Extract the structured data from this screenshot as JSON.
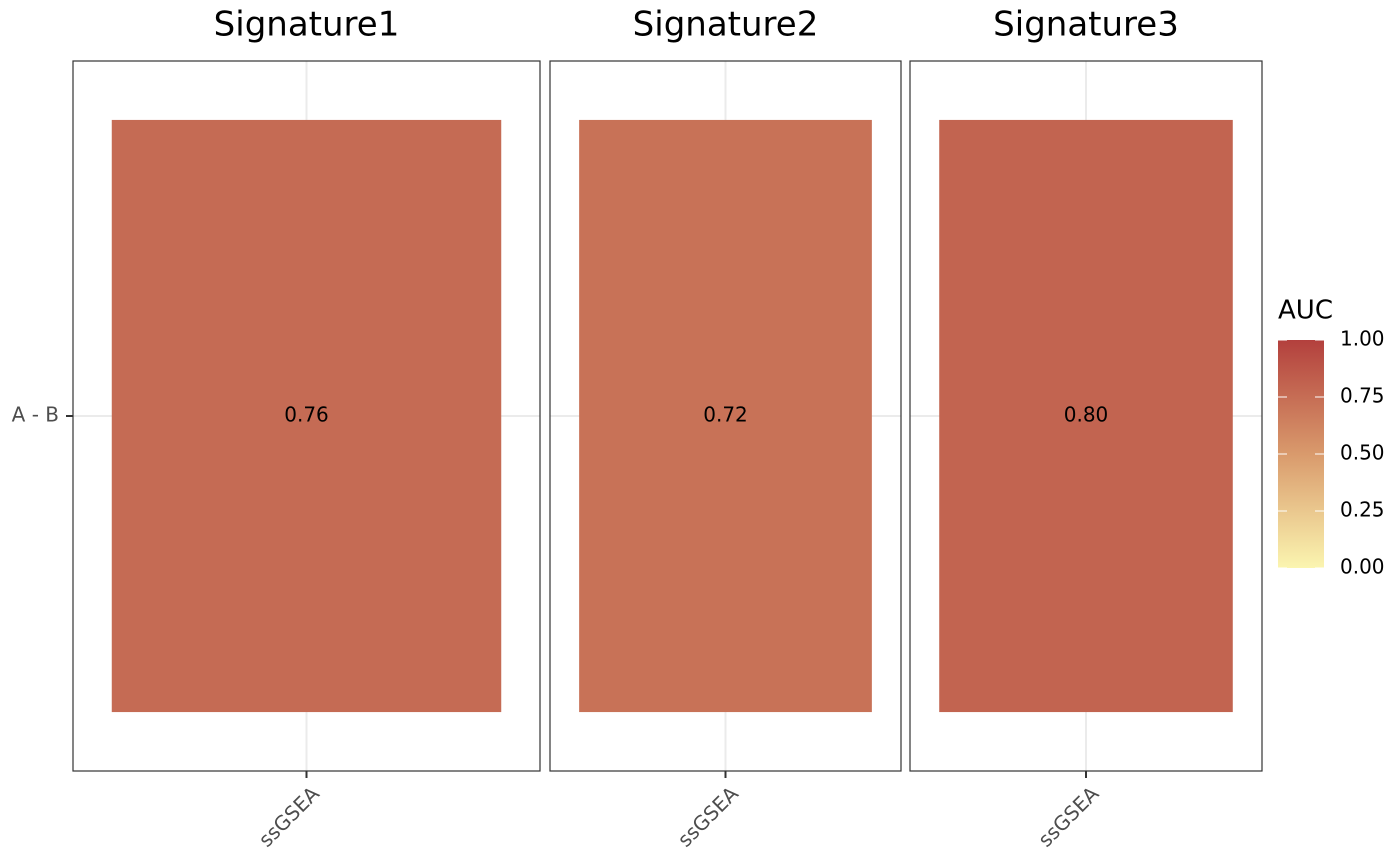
{
  "chart_data": {
    "type": "heatmap",
    "y_categories": [
      "A - B"
    ],
    "facets": [
      {
        "title": "Signature1",
        "x_categories": [
          "ssGSEA"
        ],
        "values": [
          [
            0.76
          ]
        ],
        "value_labels": [
          [
            "0.76"
          ]
        ]
      },
      {
        "title": "Signature2",
        "x_categories": [
          "ssGSEA"
        ],
        "values": [
          [
            0.72
          ]
        ],
        "value_labels": [
          [
            "0.72"
          ]
        ]
      },
      {
        "title": "Signature3",
        "x_categories": [
          "ssGSEA"
        ],
        "values": [
          [
            0.8
          ]
        ],
        "value_labels": [
          [
            "0.80"
          ]
        ]
      }
    ],
    "legend_title": "AUC",
    "colorbar": {
      "lim": [
        0,
        1
      ],
      "ticks": [
        {
          "value": 0,
          "label": "0.00"
        },
        {
          "value": 0.25,
          "label": "0.25"
        },
        {
          "value": 0.5,
          "label": "0.50"
        },
        {
          "value": 0.75,
          "label": "0.75"
        },
        {
          "value": 1,
          "label": "1.00"
        }
      ],
      "colors": [
        "#fbf5b0",
        "#d99a6c",
        "#b3403d"
      ]
    },
    "grid": true
  }
}
